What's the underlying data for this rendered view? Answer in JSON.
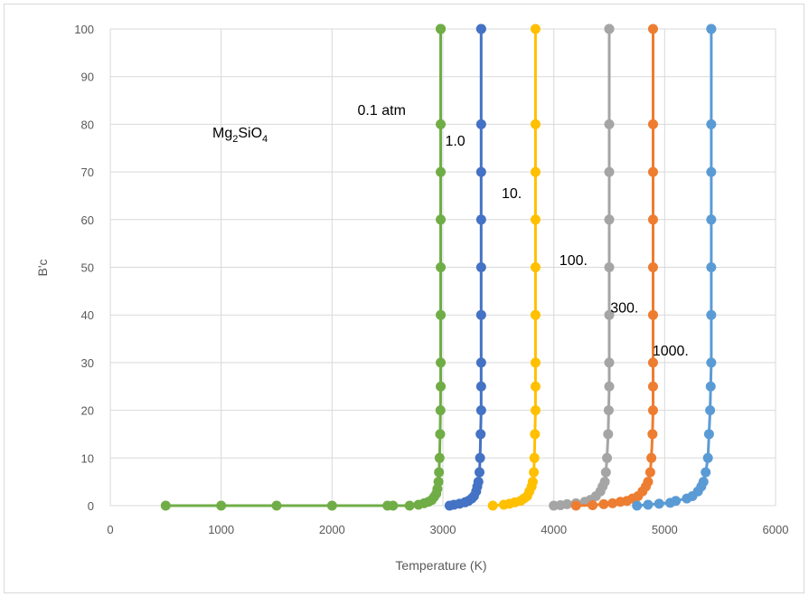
{
  "chart_data": {
    "type": "scatter",
    "title": "",
    "xlabel": "Temperature  (K)",
    "ylabel": "B'c",
    "xlim": [
      0,
      6000
    ],
    "ylim": [
      0,
      100
    ],
    "xticks": [
      0,
      1000,
      2000,
      3000,
      4000,
      5000,
      6000
    ],
    "yticks": [
      0,
      10,
      20,
      30,
      40,
      50,
      60,
      70,
      80,
      90,
      100
    ],
    "grid": true,
    "legend": "none",
    "annotation_formula": {
      "base1": "Mg",
      "sub1": "2",
      "base2": "SiO",
      "sub2": "4"
    },
    "annotations": [
      {
        "text": "0.1 atm",
        "x": 2230,
        "y": 82
      },
      {
        "text": "1.0",
        "x": 3020,
        "y": 75.5
      },
      {
        "text": "10.",
        "x": 3530,
        "y": 64.5
      },
      {
        "text": "100.",
        "x": 4050,
        "y": 50.5
      },
      {
        "text": "300.",
        "x": 4510,
        "y": 40.5
      },
      {
        "text": "1000.",
        "x": 4890,
        "y": 31.5
      }
    ],
    "series": [
      {
        "color": "#70ad47",
        "x": [
          500,
          1000,
          1500,
          2000,
          2500,
          2550,
          2700,
          2780,
          2830,
          2870,
          2900,
          2920,
          2940,
          2950,
          2960,
          2965,
          2970,
          2975,
          2978,
          2980,
          2980,
          2980,
          2980,
          2980,
          2980,
          2980,
          2980,
          2980,
          2980
        ],
        "y": [
          0,
          0,
          0,
          0,
          0,
          0,
          0,
          0.2,
          0.5,
          0.8,
          1.2,
          1.8,
          2.5,
          3.5,
          5,
          7,
          10,
          15,
          20,
          25,
          30,
          40,
          50,
          60,
          70,
          80,
          100,
          100,
          100
        ]
      },
      {
        "color": "#4472c4",
        "x": [
          3060,
          3100,
          3150,
          3200,
          3230,
          3260,
          3280,
          3300,
          3310,
          3320,
          3330,
          3335,
          3340,
          3345,
          3345,
          3345,
          3345,
          3345,
          3345,
          3345,
          3345,
          3345,
          3345
        ],
        "y": [
          0,
          0.2,
          0.4,
          0.7,
          1,
          1.5,
          2,
          3,
          4,
          5,
          7,
          10,
          15,
          20,
          25,
          30,
          40,
          50,
          60,
          70,
          80,
          100,
          100
        ]
      },
      {
        "color": "#ffc000",
        "x": [
          3450,
          3550,
          3600,
          3650,
          3700,
          3730,
          3760,
          3780,
          3800,
          3810,
          3820,
          3825,
          3830,
          3835,
          3835,
          3835,
          3835,
          3835,
          3835,
          3835,
          3835,
          3835
        ],
        "y": [
          0,
          0.2,
          0.4,
          0.7,
          1,
          1.5,
          2,
          3,
          4,
          5,
          7,
          10,
          15,
          20,
          25,
          30,
          40,
          50,
          60,
          70,
          80,
          100
        ]
      },
      {
        "color": "#a5a5a5",
        "x": [
          4000,
          4060,
          4120,
          4200,
          4280,
          4330,
          4380,
          4420,
          4440,
          4460,
          4470,
          4480,
          4490,
          4495,
          4500,
          4500,
          4500,
          4500,
          4500,
          4500,
          4500,
          4500,
          4500
        ],
        "y": [
          0,
          0.1,
          0.3,
          0.5,
          0.8,
          1.2,
          2,
          3,
          4,
          5,
          7,
          10,
          15,
          20,
          25,
          30,
          40,
          50,
          60,
          70,
          80,
          100,
          100
        ]
      },
      {
        "color": "#ed7d31",
        "x": [
          4200,
          4350,
          4450,
          4530,
          4600,
          4660,
          4710,
          4760,
          4800,
          4830,
          4850,
          4870,
          4880,
          4890,
          4895,
          4895,
          4895,
          4895,
          4895,
          4895,
          4895,
          4895,
          4895
        ],
        "y": [
          0,
          0.1,
          0.3,
          0.5,
          0.8,
          1,
          1.5,
          2,
          3,
          4,
          5,
          7,
          10,
          15,
          20,
          25,
          30,
          40,
          50,
          60,
          70,
          80,
          100
        ]
      },
      {
        "color": "#5b9bd5",
        "x": [
          4750,
          4850,
          4950,
          5050,
          5100,
          5200,
          5250,
          5300,
          5330,
          5350,
          5370,
          5390,
          5400,
          5410,
          5415,
          5420,
          5420,
          5420,
          5420,
          5420,
          5420,
          5420,
          5420
        ],
        "y": [
          0,
          0.2,
          0.4,
          0.6,
          1,
          1.5,
          2,
          3,
          4,
          5,
          7,
          10,
          15,
          20,
          25,
          30,
          40,
          50,
          60,
          70,
          80,
          100,
          100
        ]
      }
    ]
  }
}
